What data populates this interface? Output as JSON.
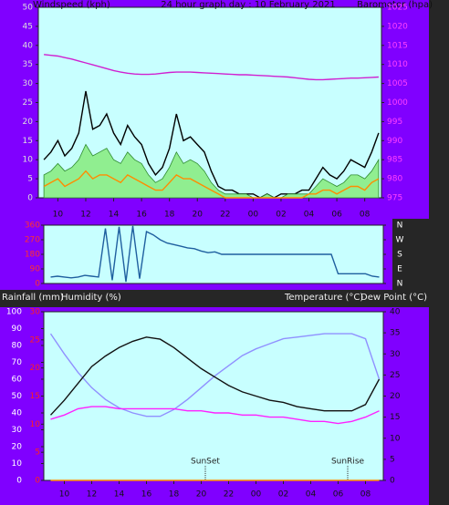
{
  "chart_data": [
    {
      "type": "line",
      "title": "24 hour graph day : 10 February 2021",
      "y_label": "Windspeed (kph)",
      "y2_label": "Barometer (hpa)",
      "x": [
        -1,
        -0.5,
        0,
        0.5,
        1,
        1.5,
        2,
        2.5,
        3,
        3.5,
        4,
        4.5,
        5,
        5.5,
        6,
        6.5,
        7,
        7.5,
        8,
        8.5,
        9,
        9.5,
        10,
        10.5,
        11,
        11.5,
        12,
        12.5,
        13,
        13.5,
        14,
        14.5,
        15,
        15.5,
        16,
        16.5,
        17,
        17.5,
        18,
        18.5,
        19,
        19.5,
        20,
        20.5,
        21,
        21.5,
        22,
        22.5,
        23
      ],
      "xlim": [
        -1.4,
        23.2
      ],
      "xticks": [
        {
          "value": 0,
          "label": "10"
        },
        {
          "value": 2,
          "label": "12"
        },
        {
          "value": 4,
          "label": "14"
        },
        {
          "value": 6,
          "label": "16"
        },
        {
          "value": 8,
          "label": "18"
        },
        {
          "value": 10,
          "label": "20"
        },
        {
          "value": 12,
          "label": "22"
        },
        {
          "value": 14,
          "label": "00"
        },
        {
          "value": 16,
          "label": "02"
        },
        {
          "value": 18,
          "label": "04"
        },
        {
          "value": 20,
          "label": "06"
        },
        {
          "value": 22,
          "label": "08"
        }
      ],
      "ylim": [
        0,
        50
      ],
      "yticks": [
        0,
        5,
        10,
        15,
        20,
        25,
        30,
        35,
        40,
        45,
        50
      ],
      "y2lim": [
        975,
        1025
      ],
      "y2ticks": [
        975,
        980,
        985,
        990,
        995,
        1000,
        1005,
        1010,
        1015,
        1020,
        1025
      ],
      "series": [
        {
          "color": "#000000",
          "values": [
            10,
            12,
            15,
            11,
            13,
            17,
            28,
            18,
            19,
            22,
            17,
            14,
            19,
            16,
            14,
            9,
            6,
            8,
            13,
            22,
            15,
            16,
            14,
            12,
            7,
            3,
            2,
            2,
            1,
            1,
            1,
            0,
            1,
            0,
            1,
            1,
            1,
            2,
            2,
            5,
            8,
            6,
            5,
            7,
            10,
            9,
            8,
            12,
            17
          ]
        },
        {
          "color": "#90ee90",
          "area": true,
          "values": [
            6,
            7,
            9,
            7,
            8,
            10,
            14,
            11,
            12,
            13,
            10,
            9,
            12,
            10,
            9,
            6,
            4,
            5,
            8,
            12,
            9,
            10,
            9,
            7,
            4,
            2,
            1,
            1,
            1,
            1,
            0,
            0,
            1,
            0,
            0,
            1,
            1,
            1,
            1,
            3,
            5,
            4,
            3,
            4,
            6,
            6,
            5,
            7,
            10
          ]
        },
        {
          "color": "#ff8c00",
          "values": [
            3,
            4,
            5,
            3,
            4,
            5,
            7,
            5,
            6,
            6,
            5,
            4,
            6,
            5,
            4,
            3,
            2,
            2,
            4,
            6,
            5,
            5,
            4,
            3,
            2,
            1,
            0,
            0,
            0,
            0,
            0,
            0,
            0,
            0,
            0,
            0,
            0,
            0,
            1,
            1,
            2,
            2,
            1,
            2,
            3,
            3,
            2,
            4,
            5
          ]
        },
        {
          "color": "#d020d0",
          "axis": "y2",
          "values": [
            1012.6,
            1012.4,
            1012.2,
            1011.8,
            1011.4,
            1010.9,
            1010.4,
            1009.9,
            1009.4,
            1008.9,
            1008.4,
            1008,
            1007.7,
            1007.5,
            1007.4,
            1007.4,
            1007.5,
            1007.7,
            1007.9,
            1008,
            1008,
            1008,
            1007.9,
            1007.8,
            1007.7,
            1007.6,
            1007.5,
            1007.4,
            1007.3,
            1007.3,
            1007.2,
            1007.1,
            1007,
            1006.9,
            1006.8,
            1006.7,
            1006.5,
            1006.3,
            1006.1,
            1006,
            1006,
            1006.1,
            1006.2,
            1006.3,
            1006.4,
            1006.4,
            1006.5,
            1006.6,
            1006.7
          ]
        }
      ]
    },
    {
      "type": "line",
      "x": [
        -1,
        -0.5,
        0,
        0.5,
        1,
        1.5,
        2,
        2.5,
        3,
        3.5,
        4,
        4.5,
        5,
        5.5,
        6,
        6.5,
        7,
        7.5,
        8,
        8.5,
        9,
        9.5,
        10,
        10.5,
        11,
        11.5,
        12,
        12.5,
        13,
        13.5,
        14,
        14.5,
        15,
        15.5,
        16,
        16.5,
        17,
        17.5,
        18,
        18.5,
        19,
        19.5,
        20,
        20.5,
        21,
        21.5,
        22,
        22.5,
        23
      ],
      "xlim": [
        -1.5,
        23.3
      ],
      "ylim": [
        0,
        360
      ],
      "yticks": [
        0,
        90,
        180,
        270,
        360
      ],
      "y2lim": [
        0,
        360
      ],
      "y2ticks": [
        {
          "value": 360,
          "label": "N"
        },
        {
          "value": 270,
          "label": "W"
        },
        {
          "value": 180,
          "label": "S"
        },
        {
          "value": 90,
          "label": "E"
        },
        {
          "value": 0,
          "label": "N"
        }
      ],
      "series": [
        {
          "color": "#1f5f9f",
          "values": [
            40,
            45,
            40,
            35,
            40,
            50,
            45,
            40,
            340,
            20,
            350,
            10,
            355,
            30,
            320,
            300,
            270,
            250,
            240,
            230,
            220,
            215,
            200,
            190,
            195,
            180,
            180,
            180,
            180,
            180,
            180,
            180,
            180,
            180,
            180,
            180,
            180,
            180,
            180,
            180,
            180,
            180,
            60,
            60,
            60,
            60,
            60,
            45,
            40
          ]
        }
      ]
    },
    {
      "type": "line",
      "y3_label": "Rainfall (mm)",
      "y_label": "Humidity (%)",
      "y2_label": "Temperature (°C)",
      "y2_label_b": "Dew Point (°C)",
      "x": [
        -1,
        0,
        1,
        2,
        3,
        4,
        5,
        6,
        7,
        8,
        9,
        10,
        11,
        12,
        13,
        14,
        15,
        16,
        17,
        18,
        19,
        20,
        21,
        22,
        23
      ],
      "xlim": [
        -1.5,
        23.3
      ],
      "xticks": [
        {
          "value": 0,
          "label": "10"
        },
        {
          "value": 2,
          "label": "12"
        },
        {
          "value": 4,
          "label": "14"
        },
        {
          "value": 6,
          "label": "16"
        },
        {
          "value": 8,
          "label": "18"
        },
        {
          "value": 10,
          "label": "20"
        },
        {
          "value": 12,
          "label": "22"
        },
        {
          "value": 14,
          "label": "00"
        },
        {
          "value": 16,
          "label": "02"
        },
        {
          "value": 18,
          "label": "04"
        },
        {
          "value": 20,
          "label": "06"
        },
        {
          "value": 22,
          "label": "08"
        }
      ],
      "ylim": [
        0,
        100
      ],
      "yticks": [
        0,
        10,
        20,
        30,
        40,
        50,
        60,
        70,
        80,
        90,
        100
      ],
      "y2lim": [
        0,
        40
      ],
      "y2ticks": [
        0,
        5,
        10,
        15,
        20,
        25,
        30,
        35,
        40
      ],
      "y3lim": [
        0,
        30
      ],
      "y3ticks": [
        0,
        5,
        10,
        15,
        20,
        25,
        30
      ],
      "annotations": [
        {
          "text": "SunSet",
          "x": 10.3
        },
        {
          "text": "SunRise",
          "x": 20.7
        }
      ],
      "series": [
        {
          "color": "#ff8c00",
          "axis": "y3",
          "values": [
            0,
            0,
            0,
            0,
            0,
            0,
            0,
            0,
            0,
            0,
            0,
            0,
            0,
            0,
            0,
            0,
            0,
            0,
            0,
            0,
            0,
            0,
            0,
            0,
            0
          ]
        },
        {
          "color": "#9090ff",
          "values": [
            87,
            75,
            64,
            55,
            48,
            43,
            40,
            38,
            38,
            42,
            48,
            55,
            62,
            68,
            74,
            78,
            81,
            84,
            85,
            86,
            87,
            87,
            87,
            84,
            60
          ]
        },
        {
          "color": "#ff20ff",
          "axis": "y2",
          "values": [
            14.5,
            15.5,
            17,
            17.5,
            17.5,
            17,
            17,
            17,
            17,
            17,
            16.5,
            16.5,
            16,
            16,
            15.5,
            15.5,
            15,
            15,
            14.5,
            14,
            14,
            13.5,
            14,
            15,
            16.5
          ]
        },
        {
          "color": "#111111",
          "axis": "y2",
          "values": [
            15.5,
            19,
            23,
            27,
            29.5,
            31.5,
            33,
            34,
            33.5,
            31.5,
            29,
            26.5,
            24.5,
            22.5,
            21,
            20,
            19,
            18.5,
            17.5,
            17,
            16.5,
            16.5,
            16.5,
            18,
            24
          ]
        }
      ]
    }
  ]
}
